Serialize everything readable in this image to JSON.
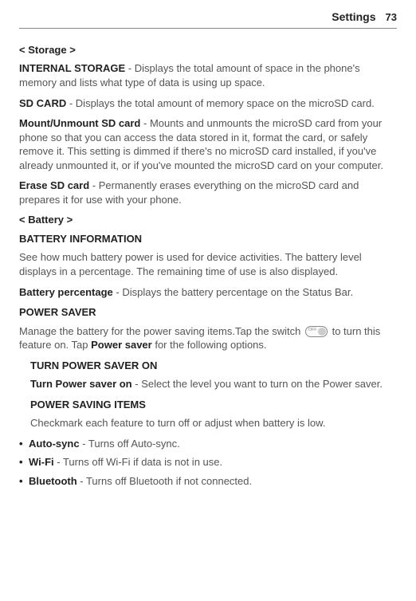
{
  "header": {
    "title": "Settings",
    "page": "73"
  },
  "storage": {
    "tag": "< Storage >",
    "internal": {
      "lead": "INTERNAL STORAGE",
      "body": " - Displays the total amount of space in the phone's memory and lists what type of data is using up space."
    },
    "sdcard": {
      "lead": "SD CARD",
      "body": " - Displays the total amount of memory space on the microSD card."
    },
    "mount": {
      "lead": "Mount/Unmount SD card",
      "body": " - Mounts and unmounts the microSD card from your phone so that you can access the data stored in it, format the card, or safely remove it. This setting is dimmed if there's no microSD card installed, if you've already unmounted it, or if you've mounted the microSD card on your computer."
    },
    "erase": {
      "lead": "Erase SD card",
      "body": " - Permanently erases everything on the microSD card and prepares it for use with your phone."
    }
  },
  "battery": {
    "tag": "< Battery >",
    "info_heading": "BATTERY INFORMATION",
    "info_para": "See how much battery power is used for device activities. The battery level displays in a percentage. The remaining time of use is also displayed.",
    "percentage": {
      "lead": "Battery percentage",
      "body": " - Displays the battery percentage on the Status Bar."
    },
    "saver_heading": "POWER SAVER",
    "saver_para_pre": "Manage the battery for the power saving items.Tap the switch ",
    "saver_para_post1": " to turn this feature on. Tap ",
    "saver_bold": "Power saver",
    "saver_para_post2": " for the following options.",
    "turn_on_heading": "TURN POWER SAVER ON",
    "turn_on": {
      "lead": "Turn Power saver on",
      "body": " - Select the level you want to turn on the Power saver."
    },
    "items_heading": "POWER SAVING ITEMS",
    "items_para": "Checkmark each feature to turn off or adjust when battery is low.",
    "bullets": [
      {
        "lead": "Auto-sync",
        "body": " - Turns off Auto-sync."
      },
      {
        "lead": "Wi-Fi",
        "body": " - Turns off Wi-Fi if data is not in use."
      },
      {
        "lead": "Bluetooth",
        "body": " - Turns off Bluetooth if not connected."
      }
    ]
  },
  "switch": {
    "off": "OFF"
  }
}
